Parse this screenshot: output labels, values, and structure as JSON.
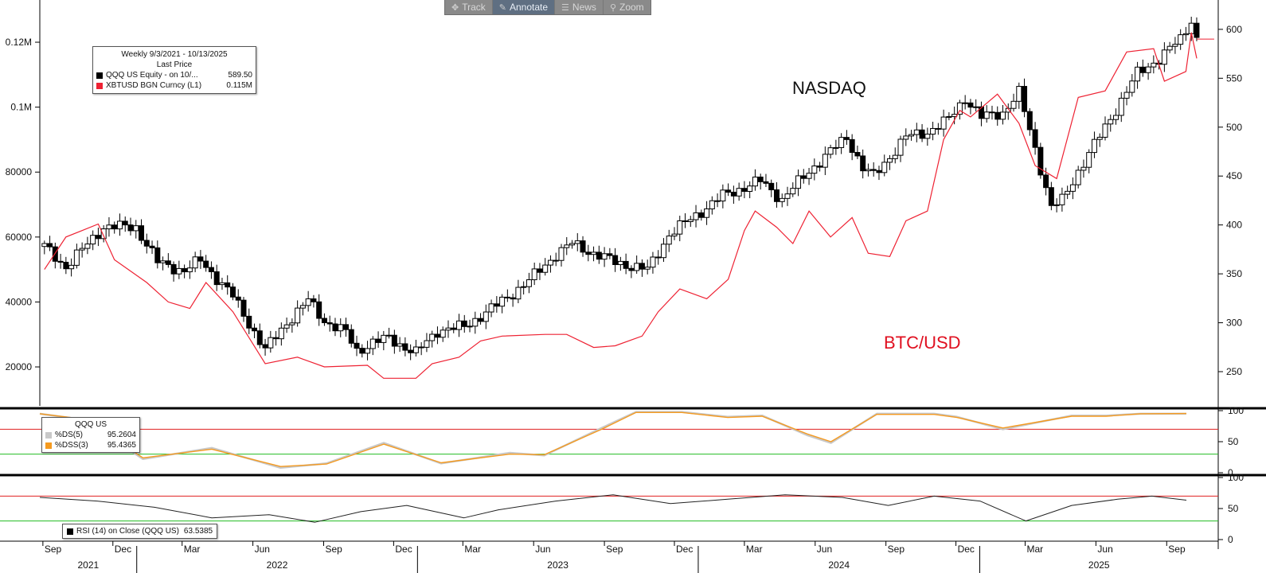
{
  "toolbar": {
    "items": [
      {
        "label": "Track",
        "icon": "crosshair-icon",
        "glyph": "✥"
      },
      {
        "label": "Annotate",
        "icon": "pencil-icon",
        "glyph": "✎"
      },
      {
        "label": "News",
        "icon": "news-icon",
        "glyph": "☰"
      },
      {
        "label": "Zoom",
        "icon": "magnifier-icon",
        "glyph": "⚲"
      }
    ],
    "active": "Annotate"
  },
  "legend": {
    "title": "Weekly 9/3/2021 - 10/13/2025",
    "subtitle": "Last Price",
    "items": [
      {
        "name": "QQQ US Equity -  on 10/...",
        "value": "589.50",
        "color": "#000000"
      },
      {
        "name": "XBTUSD BGN Curncy  (L1)",
        "value": "0.115M",
        "color": "#ee2233"
      }
    ]
  },
  "annotations": {
    "nasdaq": {
      "text": "NASDAQ",
      "color": "#111111"
    },
    "btc": {
      "text": "BTC/USD",
      "color": "#e01020"
    }
  },
  "stoch_legend": {
    "title": "QQQ US",
    "items": [
      {
        "name": "%DS(5)",
        "value": "95.2604",
        "color": "#c8c8c8"
      },
      {
        "name": "%DSS(3)",
        "value": "95.4365",
        "color": "#f59a1f"
      }
    ]
  },
  "rsi_legend": {
    "items": [
      {
        "name": "RSI (14)  on Close (QQQ US)",
        "value": "63.5385",
        "color": "#000000"
      }
    ]
  },
  "colors": {
    "price": "#000000",
    "btc": "#ee2233",
    "stoch_k": "#c8c8c8",
    "stoch_d": "#f59a1f",
    "upper_band": "#e02020",
    "lower_band": "#22bb22",
    "rsi": "#222222"
  },
  "chart_data": [
    {
      "panel": "main",
      "type": "line",
      "right_axis": {
        "name": "QQQ US Equity",
        "ticks": [
          250,
          300,
          350,
          400,
          450,
          500,
          550,
          600
        ],
        "ylim": [
          215,
          630
        ]
      },
      "left_axis": {
        "name": "XBTUSD BGN Curncy",
        "ticks": [
          20000,
          40000,
          60000,
          80000,
          100000,
          120000
        ],
        "tick_labels": [
          "20000",
          "40000",
          "60000",
          "80000",
          "0.1M",
          "0.12M"
        ],
        "ylim": [
          8000,
          133000
        ]
      },
      "x_time_ticks": [
        "Sep",
        "Dec",
        "Mar",
        "Jun",
        "Sep",
        "Dec",
        "Mar",
        "Jun",
        "Sep",
        "Dec",
        "Mar",
        "Jun",
        "Sep",
        "Dec",
        "Mar",
        "Jun",
        "Sep"
      ],
      "x_years": [
        "2021",
        "2022",
        "2023",
        "2024",
        "2025"
      ],
      "series": [
        {
          "name": "QQQ US Equity",
          "style": "candlestick-weekly",
          "x": [
            "2021-09-03",
            "2021-10-01",
            "2021-11-19",
            "2021-12-31",
            "2022-01-28",
            "2022-03-04",
            "2022-03-25",
            "2022-05-06",
            "2022-06-17",
            "2022-07-15",
            "2022-08-12",
            "2022-09-02",
            "2022-09-30",
            "2022-10-14",
            "2022-11-04",
            "2022-11-25",
            "2022-12-30",
            "2023-01-27",
            "2023-03-03",
            "2023-04-14",
            "2023-05-26",
            "2023-06-30",
            "2023-07-21",
            "2023-08-18",
            "2023-09-15",
            "2023-10-27",
            "2023-11-24",
            "2023-12-29",
            "2024-02-02",
            "2024-03-22",
            "2024-04-19",
            "2024-05-24",
            "2024-07-12",
            "2024-08-02",
            "2024-08-16",
            "2024-09-06",
            "2024-09-27",
            "2024-10-25",
            "2024-11-22",
            "2024-12-13",
            "2025-01-03",
            "2025-01-31",
            "2025-02-21",
            "2025-03-14",
            "2025-04-04",
            "2025-04-18",
            "2025-05-09",
            "2025-06-13",
            "2025-07-25",
            "2025-08-22",
            "2025-09-19",
            "2025-10-03",
            "2025-10-10"
          ],
          "y": [
            378,
            357,
            398,
            398,
            362,
            353,
            364,
            327,
            272,
            300,
            323,
            302,
            290,
            271,
            280,
            284,
            269,
            292,
            296,
            318,
            343,
            370,
            381,
            371,
            362,
            354,
            390,
            410,
            430,
            445,
            426,
            455,
            490,
            458,
            450,
            470,
            490,
            495,
            508,
            530,
            510,
            515,
            535,
            478,
            418,
            425,
            455,
            500,
            555,
            570,
            590,
            610,
            590
          ]
        },
        {
          "name": "XBTUSD BGN Curncy",
          "style": "line",
          "x": [
            "2021-09-03",
            "2021-10-01",
            "2021-10-22",
            "2021-11-12",
            "2021-12-03",
            "2022-01-14",
            "2022-02-11",
            "2022-03-11",
            "2022-04-01",
            "2022-05-06",
            "2022-06-17",
            "2022-07-29",
            "2022-09-02",
            "2022-10-28",
            "2022-11-18",
            "2022-12-30",
            "2023-01-20",
            "2023-02-24",
            "2023-03-24",
            "2023-04-21",
            "2023-06-16",
            "2023-07-14",
            "2023-08-18",
            "2023-09-15",
            "2023-10-20",
            "2023-11-10",
            "2023-12-08",
            "2024-01-12",
            "2024-02-09",
            "2024-03-01",
            "2024-03-15",
            "2024-04-12",
            "2024-05-03",
            "2024-05-24",
            "2024-06-21",
            "2024-07-19",
            "2024-08-09",
            "2024-09-06",
            "2024-09-27",
            "2024-10-25",
            "2024-11-15",
            "2024-12-06",
            "2024-12-20",
            "2025-01-24",
            "2025-02-21",
            "2025-03-14",
            "2025-04-11",
            "2025-05-09",
            "2025-06-13",
            "2025-07-11",
            "2025-08-15",
            "2025-08-29",
            "2025-09-26",
            "2025-10-03",
            "2025-10-10"
          ],
          "y": [
            50000,
            60000,
            62000,
            64000,
            53000,
            46000,
            40000,
            38000,
            46000,
            37000,
            21000,
            23000,
            20000,
            20500,
            16500,
            16500,
            21000,
            23000,
            28000,
            29500,
            30000,
            30000,
            26000,
            26500,
            29500,
            37000,
            44000,
            41000,
            47000,
            62000,
            68000,
            63000,
            58000,
            68000,
            60000,
            66000,
            55000,
            54000,
            65000,
            68000,
            90000,
            99000,
            97000,
            104000,
            95000,
            82000,
            78000,
            103000,
            105000,
            117000,
            118000,
            108000,
            111000,
            123000,
            115000
          ]
        }
      ]
    },
    {
      "panel": "stochastic",
      "type": "line",
      "ylim": [
        0,
        100
      ],
      "ticks": [
        0,
        50,
        100
      ],
      "upper_band": 70,
      "lower_band": 30,
      "series": [
        {
          "name": "%DS(5)",
          "x": [
            0,
            0.04,
            0.09,
            0.15,
            0.21,
            0.25,
            0.3,
            0.35,
            0.41,
            0.44,
            0.49,
            0.52,
            0.56,
            0.6,
            0.63,
            0.67,
            0.69,
            0.73,
            0.78,
            0.8,
            0.84,
            0.9,
            0.93,
            0.96,
            1.0
          ],
          "y": [
            95,
            85,
            22,
            40,
            8,
            15,
            48,
            15,
            32,
            28,
            72,
            98,
            98,
            90,
            92,
            60,
            48,
            95,
            95,
            90,
            70,
            92,
            92,
            95,
            95
          ]
        },
        {
          "name": "%DSS(3)",
          "x": [
            0,
            0.04,
            0.09,
            0.15,
            0.21,
            0.25,
            0.3,
            0.35,
            0.41,
            0.44,
            0.49,
            0.52,
            0.56,
            0.6,
            0.63,
            0.67,
            0.69,
            0.73,
            0.78,
            0.8,
            0.84,
            0.9,
            0.93,
            0.96,
            1.0
          ],
          "y": [
            95,
            86,
            24,
            38,
            10,
            14,
            46,
            16,
            30,
            29,
            70,
            97,
            97,
            89,
            91,
            62,
            50,
            94,
            94,
            89,
            72,
            91,
            91,
            95,
            95.4
          ]
        }
      ]
    },
    {
      "panel": "rsi",
      "type": "line",
      "ylim": [
        0,
        100
      ],
      "ticks": [
        0,
        50,
        100
      ],
      "upper_band": 70,
      "lower_band": 30,
      "series": [
        {
          "name": "RSI (14)",
          "x": [
            0,
            0.05,
            0.1,
            0.15,
            0.2,
            0.24,
            0.28,
            0.32,
            0.37,
            0.4,
            0.45,
            0.5,
            0.55,
            0.6,
            0.65,
            0.7,
            0.74,
            0.78,
            0.82,
            0.86,
            0.9,
            0.94,
            0.97,
            1.0
          ],
          "y": [
            68,
            62,
            52,
            35,
            40,
            28,
            45,
            55,
            35,
            48,
            62,
            72,
            58,
            65,
            72,
            68,
            55,
            70,
            62,
            30,
            55,
            65,
            70,
            63.5
          ]
        }
      ]
    }
  ]
}
